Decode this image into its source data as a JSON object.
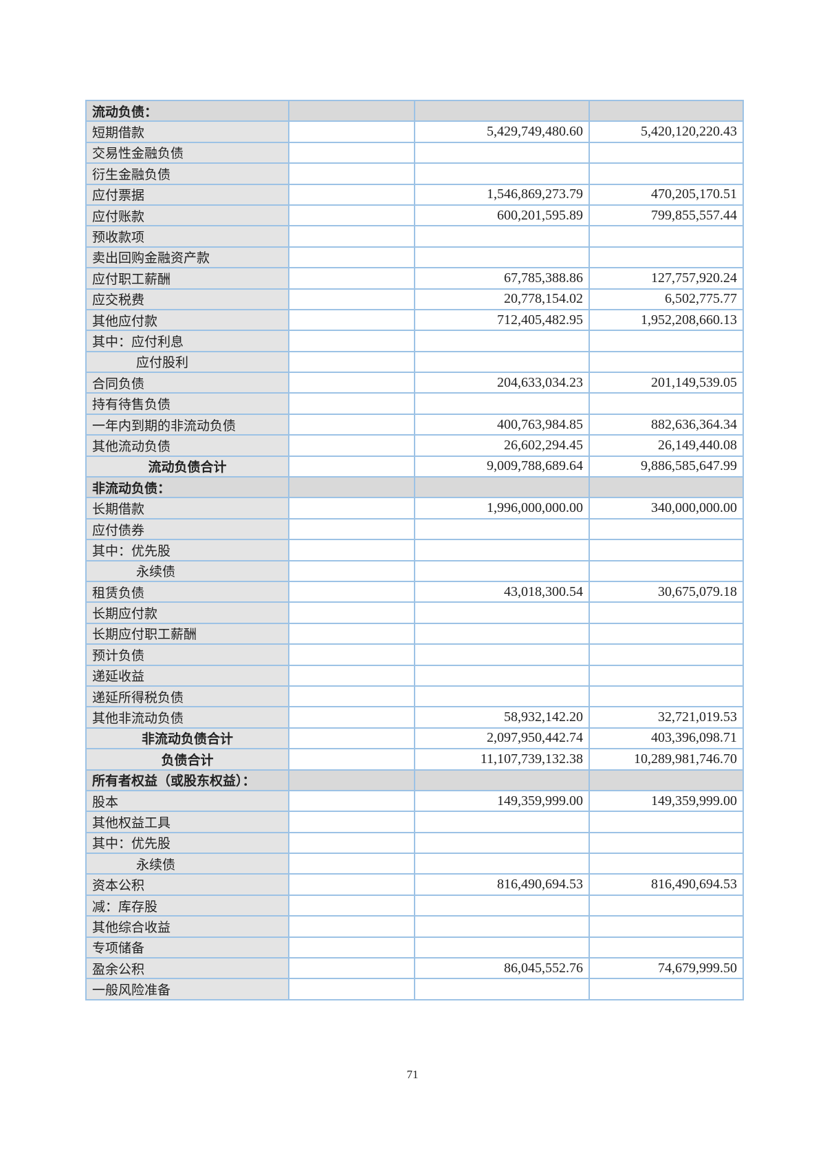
{
  "rows": [
    {
      "label": "流动负债：",
      "type": "section",
      "note": "",
      "current": "",
      "previous": ""
    },
    {
      "label": "短期借款",
      "type": "item",
      "note": "",
      "current": "5,429,749,480.60",
      "previous": "5,420,120,220.43"
    },
    {
      "label": "交易性金融负债",
      "type": "item",
      "note": "",
      "current": "",
      "previous": ""
    },
    {
      "label": "衍生金融负债",
      "type": "item",
      "note": "",
      "current": "",
      "previous": ""
    },
    {
      "label": "应付票据",
      "type": "item",
      "note": "",
      "current": "1,546,869,273.79",
      "previous": "470,205,170.51"
    },
    {
      "label": "应付账款",
      "type": "item",
      "note": "",
      "current": "600,201,595.89",
      "previous": "799,855,557.44"
    },
    {
      "label": "预收款项",
      "type": "item",
      "note": "",
      "current": "",
      "previous": ""
    },
    {
      "label": "卖出回购金融资产款",
      "type": "item",
      "note": "",
      "current": "",
      "previous": ""
    },
    {
      "label": "应付职工薪酬",
      "type": "item",
      "note": "",
      "current": "67,785,388.86",
      "previous": "127,757,920.24"
    },
    {
      "label": "应交税费",
      "type": "item",
      "note": "",
      "current": "20,778,154.02",
      "previous": "6,502,775.77"
    },
    {
      "label": "其他应付款",
      "type": "item",
      "note": "",
      "current": "712,405,482.95",
      "previous": "1,952,208,660.13"
    },
    {
      "label": "其中：应付利息",
      "type": "item",
      "note": "",
      "current": "",
      "previous": ""
    },
    {
      "label": "应付股利",
      "type": "indent",
      "note": "",
      "current": "",
      "previous": ""
    },
    {
      "label": "合同负债",
      "type": "item",
      "note": "",
      "current": "204,633,034.23",
      "previous": "201,149,539.05"
    },
    {
      "label": "持有待售负债",
      "type": "item",
      "note": "",
      "current": "",
      "previous": ""
    },
    {
      "label": "一年内到期的非流动负债",
      "type": "item",
      "note": "",
      "current": "400,763,984.85",
      "previous": "882,636,364.34"
    },
    {
      "label": "其他流动负债",
      "type": "item",
      "note": "",
      "current": "26,602,294.45",
      "previous": "26,149,440.08"
    },
    {
      "label": "流动负债合计",
      "type": "total",
      "note": "",
      "current": "9,009,788,689.64",
      "previous": "9,886,585,647.99"
    },
    {
      "label": "非流动负债：",
      "type": "section",
      "note": "",
      "current": "",
      "previous": ""
    },
    {
      "label": "长期借款",
      "type": "item",
      "note": "",
      "current": "1,996,000,000.00",
      "previous": "340,000,000.00"
    },
    {
      "label": "应付债券",
      "type": "item",
      "note": "",
      "current": "",
      "previous": ""
    },
    {
      "label": "其中：优先股",
      "type": "item",
      "note": "",
      "current": "",
      "previous": ""
    },
    {
      "label": "永续债",
      "type": "indent",
      "note": "",
      "current": "",
      "previous": ""
    },
    {
      "label": "租赁负债",
      "type": "item",
      "note": "",
      "current": "43,018,300.54",
      "previous": "30,675,079.18"
    },
    {
      "label": "长期应付款",
      "type": "item",
      "note": "",
      "current": "",
      "previous": ""
    },
    {
      "label": "长期应付职工薪酬",
      "type": "item",
      "note": "",
      "current": "",
      "previous": ""
    },
    {
      "label": "预计负债",
      "type": "item",
      "note": "",
      "current": "",
      "previous": ""
    },
    {
      "label": "递延收益",
      "type": "item",
      "note": "",
      "current": "",
      "previous": ""
    },
    {
      "label": "递延所得税负债",
      "type": "item",
      "note": "",
      "current": "",
      "previous": ""
    },
    {
      "label": "其他非流动负债",
      "type": "item",
      "note": "",
      "current": "58,932,142.20",
      "previous": "32,721,019.53"
    },
    {
      "label": "非流动负债合计",
      "type": "total",
      "note": "",
      "current": "2,097,950,442.74",
      "previous": "403,396,098.71"
    },
    {
      "label": "负债合计",
      "type": "total",
      "note": "",
      "current": "11,107,739,132.38",
      "previous": "10,289,981,746.70"
    },
    {
      "label": "所有者权益（或股东权益）：",
      "type": "section",
      "note": "",
      "current": "",
      "previous": ""
    },
    {
      "label": "股本",
      "type": "item",
      "note": "",
      "current": "149,359,999.00",
      "previous": "149,359,999.00"
    },
    {
      "label": "其他权益工具",
      "type": "item",
      "note": "",
      "current": "",
      "previous": ""
    },
    {
      "label": "其中：优先股",
      "type": "item",
      "note": "",
      "current": "",
      "previous": ""
    },
    {
      "label": "永续债",
      "type": "indent",
      "note": "",
      "current": "",
      "previous": ""
    },
    {
      "label": "资本公积",
      "type": "item",
      "note": "",
      "current": "816,490,694.53",
      "previous": "816,490,694.53"
    },
    {
      "label": "减：库存股",
      "type": "item",
      "note": "",
      "current": "",
      "previous": ""
    },
    {
      "label": "其他综合收益",
      "type": "item",
      "note": "",
      "current": "",
      "previous": ""
    },
    {
      "label": "专项储备",
      "type": "item",
      "note": "",
      "current": "",
      "previous": ""
    },
    {
      "label": "盈余公积",
      "type": "item",
      "note": "",
      "current": "86,045,552.76",
      "previous": "74,679,999.50"
    },
    {
      "label": "一般风险准备",
      "type": "item",
      "note": "",
      "current": "",
      "previous": ""
    }
  ],
  "page_number": "71"
}
